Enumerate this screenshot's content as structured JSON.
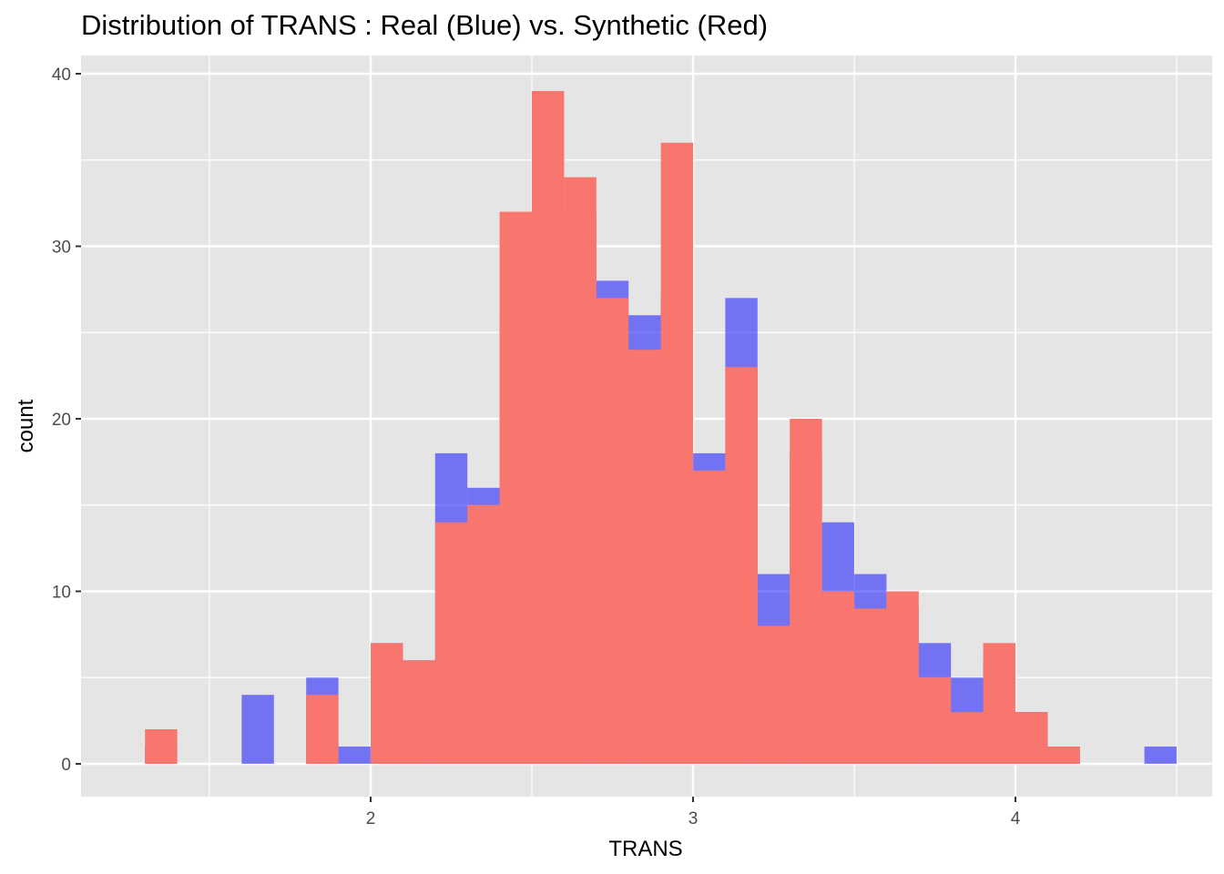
{
  "chart_data": {
    "type": "bar",
    "title": "Distribution of TRANS : Real (Blue) vs. Synthetic (Red)",
    "xlabel": "TRANS",
    "ylabel": "count",
    "x_ticks": [
      2,
      3,
      4
    ],
    "y_ticks": [
      0,
      10,
      20,
      30,
      40
    ],
    "xlim": [
      1.1,
      4.6
    ],
    "ylim": [
      -2,
      42
    ],
    "grid": true,
    "bin_width": 0.1,
    "bin_starts": [
      1.3,
      1.4,
      1.5,
      1.6,
      1.7,
      1.8,
      1.9,
      2.0,
      2.1,
      2.2,
      2.3,
      2.4,
      2.5,
      2.6,
      2.7,
      2.8,
      2.9,
      3.0,
      3.1,
      3.2,
      3.3,
      3.4,
      3.5,
      3.6,
      3.7,
      3.8,
      3.9,
      4.0,
      4.1,
      4.2,
      4.3,
      4.4
    ],
    "series": [
      {
        "color": "#0000ff",
        "opacity": 0.5,
        "values": [
          1,
          0,
          0,
          4,
          0,
          5,
          1,
          7,
          6,
          18,
          16,
          26,
          28,
          32,
          28,
          26,
          27,
          18,
          27,
          11,
          18,
          14,
          11,
          9,
          7,
          5,
          6,
          3,
          1,
          0,
          0,
          1
        ]
      },
      {
        "color": "#f8766d",
        "opacity": 1.0,
        "values": [
          2,
          0,
          0,
          0,
          0,
          4,
          0,
          7,
          6,
          14,
          15,
          32,
          39,
          34,
          27,
          24,
          36,
          17,
          23,
          8,
          20,
          10,
          9,
          10,
          5,
          3,
          7,
          3,
          1,
          0,
          0,
          0
        ]
      }
    ]
  }
}
